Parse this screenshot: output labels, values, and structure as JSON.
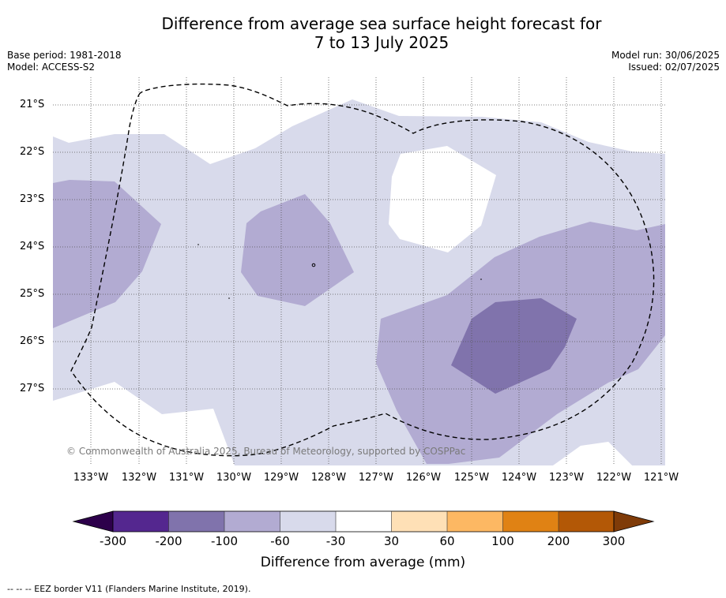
{
  "title_line1": "Difference from average sea surface height forecast for",
  "title_line2": "7 to 13 July 2025",
  "base_period": "Base period: 1981-2018",
  "model": "Model: ACCESS-S2",
  "model_run": "Model run: 30/06/2025",
  "issued": "Issued: 02/07/2025",
  "copyright": "© Commonwealth of Australia 2025, Bureau of Meteorology, supported by COSPPac",
  "lat_labels": [
    "21°S",
    "22°S",
    "23°S",
    "24°S",
    "25°S",
    "26°S",
    "27°S"
  ],
  "lon_labels": [
    "133°W",
    "132°W",
    "131°W",
    "130°W",
    "129°W",
    "128°W",
    "127°W",
    "126°W",
    "125°W",
    "124°W",
    "123°W",
    "122°W",
    "121°W"
  ],
  "colorbar": {
    "title": "Difference from average (mm)",
    "ticks": [
      "-300",
      "-200",
      "-100",
      "-60",
      "-30",
      "30",
      "60",
      "100",
      "200",
      "300"
    ],
    "colors": [
      "#54278f",
      "#8073ac",
      "#b2abd2",
      "#d8daeb",
      "#ffffff",
      "#fee0b6",
      "#fdb863",
      "#e08214",
      "#b35806"
    ],
    "under_color": "#2d004b",
    "over_color": "#7f3b08"
  },
  "footer": "-- -- -- EEZ border V11 (Flanders Marine Institute, 2019)."
}
